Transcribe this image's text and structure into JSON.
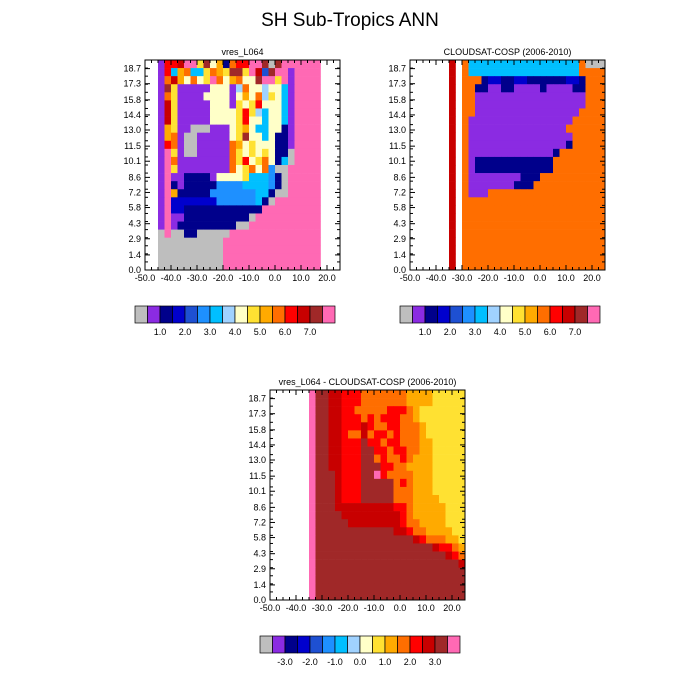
{
  "title": "SH Sub-Tropics ANN",
  "colors": {
    "missing": "#bebebe",
    "abs_palette": [
      "#bebebe",
      "#8b2be2",
      "#00008b",
      "#0000cd",
      "#1e50d2",
      "#1e90ff",
      "#00bfff",
      "#a0d2ff",
      "#ffffc8",
      "#ffe132",
      "#ffaa00",
      "#ff6e00",
      "#ff0000",
      "#c80000",
      "#a02828",
      "#ff69b4"
    ],
    "diff_palette": [
      "#bebebe",
      "#8b2be2",
      "#00008b",
      "#0000cd",
      "#1e50d2",
      "#1e90ff",
      "#00bfff",
      "#a0d2ff",
      "#ffffc8",
      "#ffe132",
      "#ffaa00",
      "#ff6e00",
      "#ff0000",
      "#c80000",
      "#a02828",
      "#ff69b4"
    ]
  },
  "chart_data": [
    {
      "type": "heatmap",
      "title": "vres_L064",
      "x_ticks": [
        "-50.0",
        "-40.0",
        "-30.0",
        "-20.0",
        "-10.0",
        "0.0",
        "10.0",
        "20.0"
      ],
      "y_ticks": [
        "0.0",
        "1.4",
        "2.9",
        "4.3",
        "5.8",
        "7.2",
        "8.6",
        "10.1",
        "11.5",
        "13.0",
        "14.4",
        "15.8",
        "17.3",
        "18.7"
      ],
      "xlim": [
        -50,
        25
      ],
      "ylim": [
        0,
        19.5
      ],
      "colorbar_labels": [
        "1.0",
        "2.0",
        "3.0",
        "4.0",
        "5.0",
        "6.0",
        "7.0"
      ],
      "grid_x_start": -45,
      "grid_dx": 2.5,
      "grid_y_start": 0,
      "grid_dy": 0.75,
      "rows": [
        "1CCDFF9E8A2BCCFFE0EFFFFFF",
        "1C6AB669BA9EE9FD4EFF1FFFF",
        "1BDA8B89FB8AB88EFF9F1FFFF",
        "1E91111188817B8878861FFFF",
        "1B91111888818A8B79861FFFF",
        "1D9111118881989C88861FFFF",
        "1D91111188889C9768861FFFF",
        "1D91111188889C8868861FFFF",
        "1A91100011189A8668821FFFF",
        "1AB1001111189E8868221FFFF",
        "1CB10011111BA89888221FFFF",
        "1F910011111B989898220FFFF",
        "1FB11111111B9C89B8260FFFF",
        "1F911111111B89B8B500FFFFF",
        "1F112222188889666520FFFFF",
        "1F212222255556666520FFFFF",
        "1FA22222555555566200FFFFF",
        "1F3333333555555620FFFFFFF",
        "1F33222222222222FFFFFFFFF",
        "1F1122222222220FFFFFFFFFF",
        "1F122222222200FFFFFFFFFFF",
        "0F002200000FFFFFFFFFFFFFF",
        "0000000000FFFFFFFFFFFFFFF",
        "0000000000FFFFFFFFFFFFFFF",
        "0000000000FFFFFFFFFFFFFFF",
        "0000000000FFFFFFFFFFFFFFF"
      ]
    },
    {
      "type": "heatmap",
      "title": "CLOUDSAT-COSP (2006-2010)",
      "x_ticks": [
        "-50.0",
        "-40.0",
        "-30.0",
        "-20.0",
        "-10.0",
        "0.0",
        "10.0",
        "20.0"
      ],
      "y_ticks": [
        "0.0",
        "1.4",
        "2.9",
        "4.3",
        "5.8",
        "7.2",
        "8.6",
        "10.1",
        "11.5",
        "13.0",
        "14.4",
        "15.8",
        "17.3",
        "18.7"
      ],
      "xlim": [
        -50,
        25
      ],
      "ylim": [
        0,
        19.5
      ],
      "colorbar_labels": [
        "1.0",
        "2.0",
        "3.0",
        "4.0",
        "5.0",
        "6.0",
        "7.0"
      ],
      "grid_x_start": -35,
      "grid_dx": 2.5,
      "grid_y_start": 0,
      "grid_dy": 0.75,
      "rows": [
        "DGB66666666666666666B0000",
        "DGB66666666666666666BBBBB",
        "DGBBB2332233222222332BBBB",
        "DGBB22112211112111122BBBB",
        "DGBB11111111111111111BBBB",
        "DGBB11111111111111111BBBB",
        "DGBB1111111111111111BBBBB",
        "DGB1111111111111111BBBBBB",
        "DGB111111111111111BBBBBBB",
        "DGB1111111111111111BBBBBB",
        "DGB1111111111111112BBBBBB",
        "DGB11111111111112BBBBBBBB",
        "DGB1222222222222BBBBBBBBB",
        "DGB1222222222222BBBBBBBBB",
        "DGB11111111222BBBBBBBBBBB",
        "DGB1111111222BBBBBBBBBBBB",
        "DGB111BBBBBBBBBBBBBBBBBBB",
        "DGBBBBBBBBBBBBBBBBBBBBBBB",
        "DGBBBBBBBBBBBBBBBBBBBBBBB",
        "DGBBBBBBBBBBBBBBBBBBBBBBB",
        "DGBBBBBBBBBBBBBBBBBBBBBBB",
        "DGBBBBBBBBBBBBBBBBBBBBBBB",
        "DGBBBBBBBBBBBBBBBBBBBBBBB",
        "DGBBBBBBBBBBBBBBBBBBBBBBB",
        "DGBBBBBBBBBBBBBBBBBBBBBBB",
        "DGBBBBBBBBBBBBBBBBBBBBBBB"
      ]
    },
    {
      "type": "heatmap",
      "title": "vres_L064 - CLOUDSAT-COSP (2006-2010)",
      "x_ticks": [
        "-50.0",
        "-40.0",
        "-30.0",
        "-20.0",
        "-10.0",
        "0.0",
        "10.0",
        "20.0"
      ],
      "y_ticks": [
        "0.0",
        "1.4",
        "2.9",
        "4.3",
        "5.8",
        "7.2",
        "8.6",
        "10.1",
        "11.5",
        "13.0",
        "14.4",
        "15.8",
        "17.3",
        "18.7"
      ],
      "xlim": [
        -50,
        25
      ],
      "ylim": [
        0,
        19.5
      ],
      "colorbar_labels": [
        "-3.0",
        "-2.0",
        "-1.0",
        "0.0",
        "1.0",
        "2.0",
        "3.0"
      ],
      "grid_x_start": -35,
      "grid_dx": 2.5,
      "grid_y_start": 0,
      "grid_dy": 0.75,
      "rows": [
        "FEEDDCCCBBBBBBBAAAA999999",
        "FEEDDCCCBBBBBBBAAAA999999",
        "FEEDDCCBBBBBCCCBA99999999",
        "FEEDDCCCBCBCCCBBA99999999",
        "FEEDDCCCDCBBCCBBBA9999999",
        "FEEDDCBBDBCCBCBBBA9999999",
        "FEEDDCCCECCBCCBBBAA999999",
        "FEEDDCCCEECCBCCBBAA999999",
        "FEEDDCCCEEBCBBCBAAA999999",
        "FEEDDCCCEEECCBBAAAA999999",
        "FEEEDCCCEEFCBBBBAAA999999",
        "FEEEDCCCEEEEEBCBAAA999999",
        "FEEEDCCCEEEEEBBBAAA999999",
        "FEEEDCCCEEEEEBBBAAAA99999",
        "FEEEDDDDDDDDDCCBAAAAA9999",
        "FEEEEDDDDDDDDDCBAAAAA9999",
        "FEEEEEDDDDDDDDCBBAAAA9999",
        "FEEEEEEEEEEEEDDCBBAAAA999",
        "FEEEEEEEEEEEEEEEDCBBBAA99",
        "FEEEEEEEEEEEEEEEEEEDCCBA9",
        "FEEEEEEEEEEEEEEEEEEEEDCBA",
        "FEEEEEEEEEEEEEEEEEEEEEEDB",
        "FEEEEEEEEEEEEEEEEEEEEEEEC",
        "FEEEEEEEEEEEEEEEEEEEEEEED",
        "FEEEEEEEEEEEEEEEEEEEEEEEE",
        "FEEEEEEEEEEEEEEEEEEEEEEEE"
      ]
    }
  ]
}
